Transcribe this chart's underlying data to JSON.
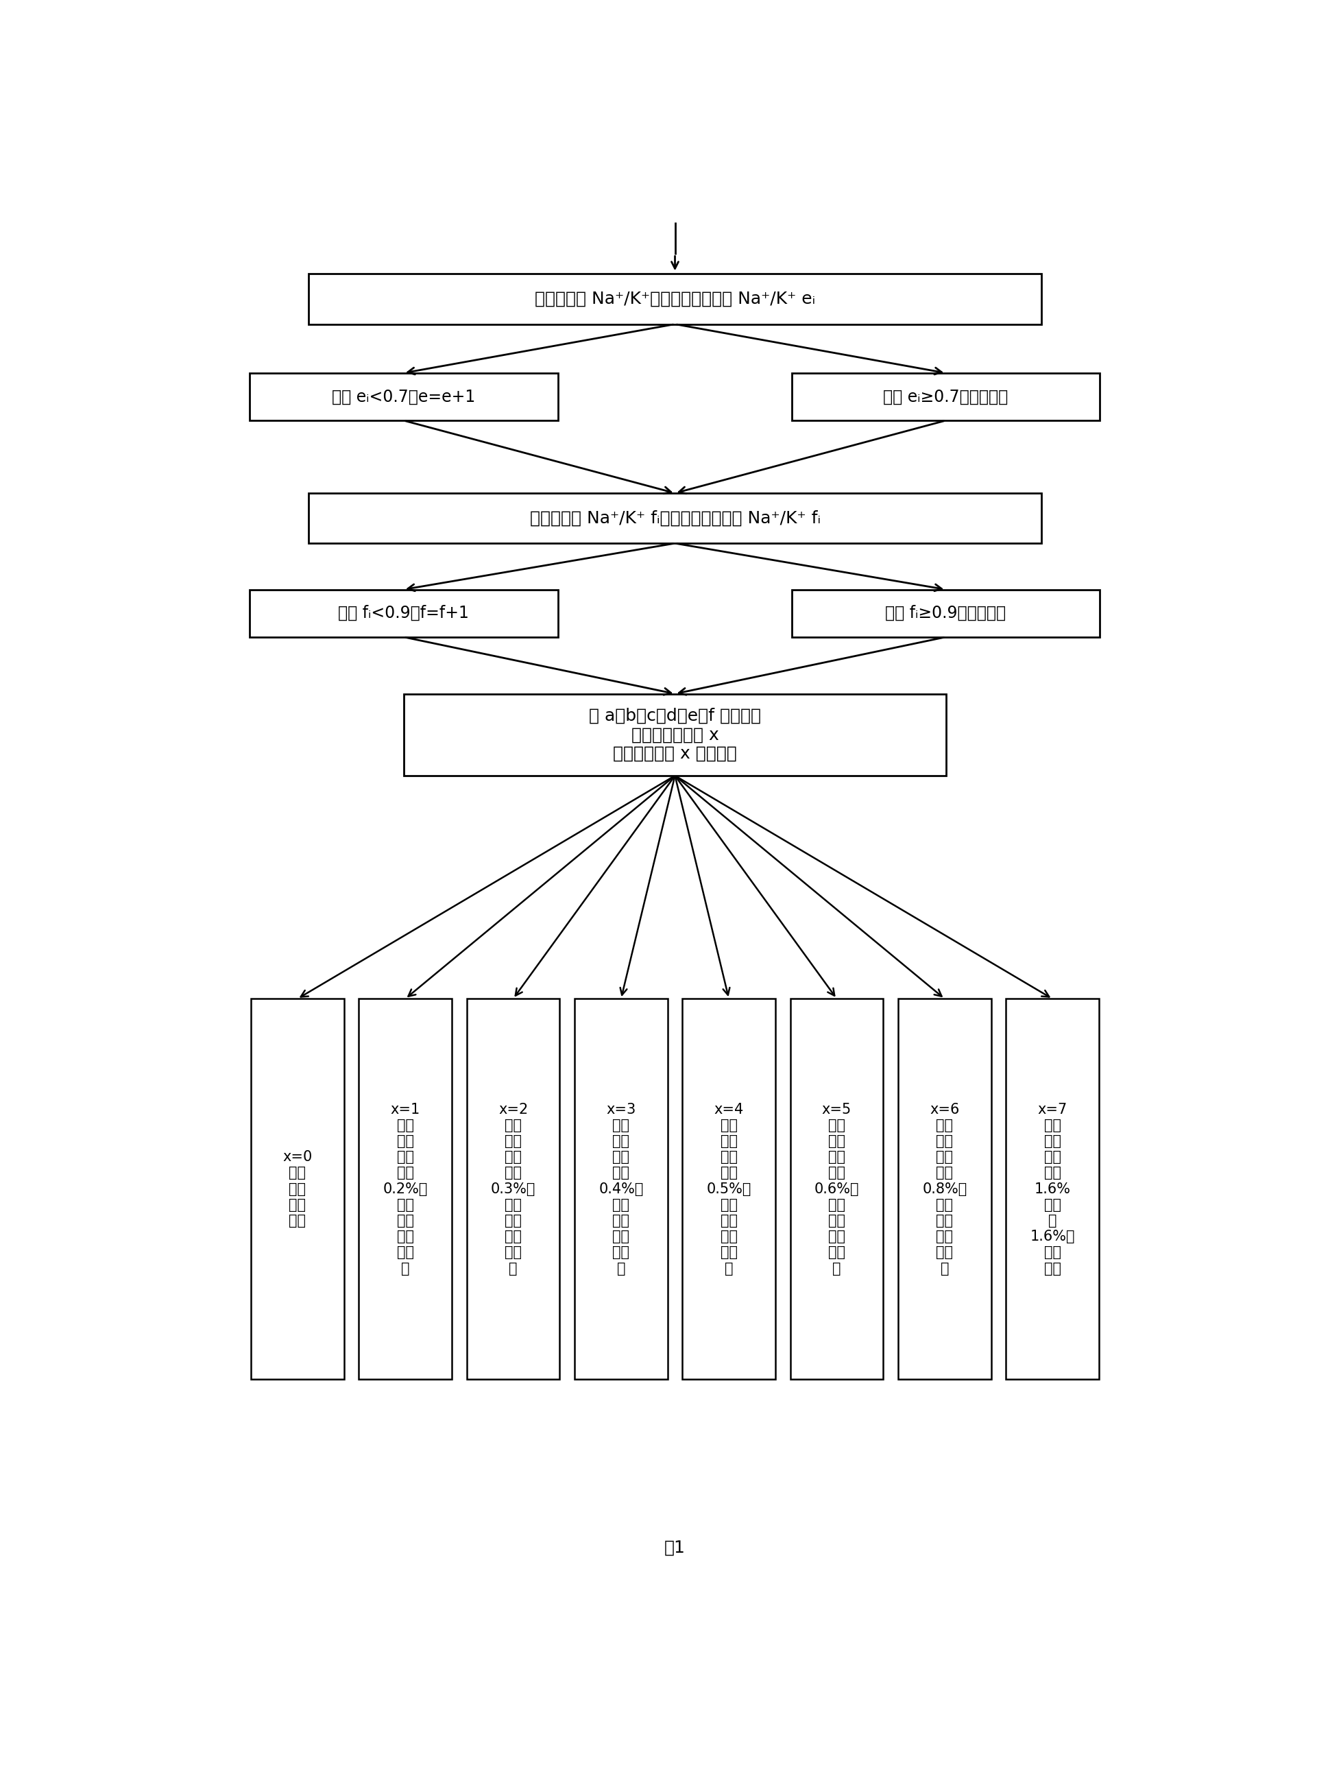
{
  "background_color": "#ffffff",
  "fig_width": 19.21,
  "fig_height": 25.75,
  "title": "图1",
  "box1_text": "读取叶片中 Na⁺/K⁺，依次比对叶片中 Na⁺/K⁺ eᵢ",
  "box2L_text": "如果 eᵢ<0.7，e=e+1",
  "box2R_text": "如果 eᵢ≥0.7，比对结束",
  "box3_text": "读取根系中 Na⁺/K⁺ fᵢ，依次比对根系中 Na⁺/K⁺ fᵢ",
  "box4L_text": "如果 fᵢ<0.9，f=f+1",
  "box4R_text": "如果 fᵢ≥0.9，比对结束",
  "box5_text": "取 a、b、c、d、e、f 中最小値\n该値即为短板値 x\n根据该短板値 x 进行判断",
  "leaf_texts": [
    "x=0\n该品\n种不\n适宜\n引种",
    "x=1\n该品\n种耐\n盐极\n限为\n0.2%，\n适宜\n轻度\n盐渍\n化土\n壤",
    "x=2\n该品\n种耐\n盐极\n限为\n0.3%，\n适宜\n轻度\n盐渍\n化土\n壤",
    "x=3\n该品\n种耐\n盐极\n限为\n0.4%，\n适宜\n中度\n盐渍\n化土\n壤",
    "x=4\n该品\n种耐\n盐极\n限为\n0.5%，\n适宜\n中度\n盐渍\n化土\n壤",
    "x=5\n该品\n种耐\n盐极\n限为\n0.6%，\n适宜\n中度\n盐渍\n化土\n壤",
    "x=6\n该品\n种耐\n盐极\n限为\n0.8%，\n适宜\n重度\n盐渍\n化土\n壤",
    "x=7\n该品\n种耐\n盐极\n限为\n1.6%\n或大\n于\n1.6%，\n适宜\n盐土"
  ]
}
